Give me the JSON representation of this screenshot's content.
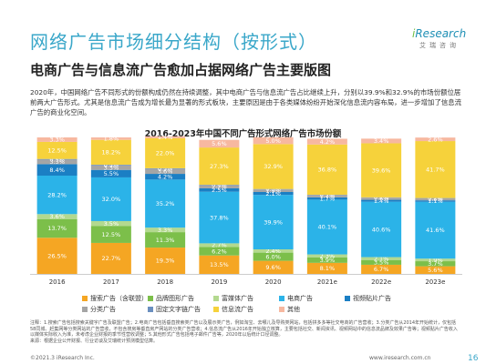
{
  "header": {
    "title": "网络广告市场细分结构（按形式）",
    "subtitle": "电商广告与信息流广告愈加占据网络广告主要版图",
    "logo_brand_i": "i",
    "logo_brand": "Research",
    "logo_sub": "艾瑞咨询"
  },
  "body_text": "2020年，中国网络广告不同形式的份额构成仍然在持续调整，其中电商广告与信息流广告占比继续上升，分别以39.9%和32.9%的市场份额位居前两大广告形式。尤其是信息流广告成为增长最为显著的形式板块，主要原因是由于各类媒体纷纷开始深化信息流内容布局，进一步增加了信息流广告的商业化空间。",
  "notes": "注释：1.搜索广告包括搜索关键字广告及联盟广告；2.电商广告包括垂直搜索类广告以及展示类广告，例如淘宝、去哪儿及导购类网站，包括拼多多等社交电商的广告营收；3.分类广告从2014年开始统计，仅包括58同城、赶集网等分类网站的广告营收，不包含搜房等垂直房产网站的分类广告营收；4.信息流广告从2016年开始独立核算，主要包括社交、新闻资讯、视频网站中的信息流品牌及效果广告等；视频贴片广告收入以媒体实际收入为准，未考虑企业财报的季节性营收调整；5.其他形式广告包括电子邮件广告等，2020年以后统计口径调整。",
  "source": "来源：根据企业公开财报、行业访谈及艾瑞统计预测模型估算。",
  "footer": {
    "copyright": "©2021.3 iResearch Inc.",
    "url": "www.iresearch.com.cn",
    "page": "16"
  },
  "chart_data": {
    "type": "bar",
    "stacked": true,
    "title": "2016-2023年中国不同广告形式网络广告市场份额",
    "categories": [
      "2016",
      "2017",
      "2018",
      "2019",
      "2020",
      "2021e",
      "2022e",
      "2023e"
    ],
    "ylim": [
      0,
      100
    ],
    "grid": false,
    "legend_position": "bottom",
    "series": [
      {
        "name": "搜索广告（含联盟）",
        "color": "#f5a623",
        "values": [
          26.5,
          22.7,
          19.3,
          13.5,
          9.6,
          8.1,
          6.7,
          5.6
        ]
      },
      {
        "name": "品牌图形广告",
        "color": "#7cbf4a",
        "values": [
          13.7,
          12.5,
          11.3,
          6.2,
          6.0,
          3.9,
          3.5,
          3.7
        ]
      },
      {
        "name": "富媒体广告",
        "color": "#b3d98f",
        "values": [
          3.6,
          3.5,
          3.3,
          2.7,
          2.4,
          2.3,
          2.1,
          1.9
        ]
      },
      {
        "name": "电商广告",
        "color": "#2bb3e8",
        "values": [
          28.2,
          32.0,
          35.2,
          37.8,
          39.9,
          40.1,
          40.6,
          41.6
        ]
      },
      {
        "name": "视频贴片广告",
        "color": "#1b7fc4",
        "values": [
          8.4,
          5.5,
          4.2,
          2.5,
          2.1,
          1.7,
          1.4,
          1.1
        ]
      },
      {
        "name": "分类广告",
        "color": "#a5a5a5",
        "values": [
          3.3,
          3.3,
          3.6,
          2.2,
          1.9,
          1.7,
          1.6,
          1.5
        ]
      },
      {
        "name": "固定文字链广告",
        "color": "#6a8fbf",
        "values": [
          0.5,
          0.5,
          0.5,
          0.4,
          0.3,
          0.2,
          0.2,
          0.2
        ]
      },
      {
        "name": "信息流广告",
        "color": "#f6d23b",
        "values": [
          12.5,
          18.2,
          22.0,
          27.3,
          32.9,
          36.8,
          39.6,
          41.7
        ]
      },
      {
        "name": "其他",
        "color": "#f7b8a0",
        "values": [
          3.3,
          1.8,
          1.4,
          5.6,
          5.0,
          4.2,
          3.4,
          2.6
        ]
      }
    ]
  }
}
